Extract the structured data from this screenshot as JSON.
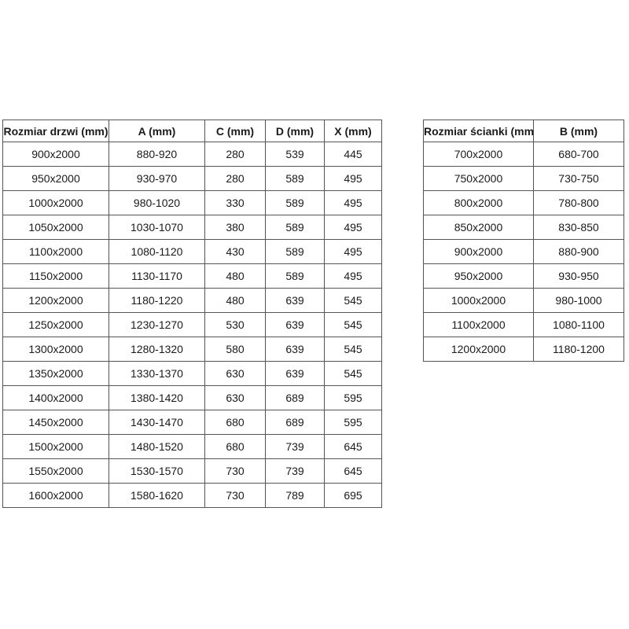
{
  "colors": {
    "background": "#ffffff",
    "border": "#555555",
    "text": "#1a1a1a"
  },
  "door_table": {
    "headers": [
      "Rozmiar drzwi (mm)",
      "A (mm)",
      "C (mm)",
      "D (mm)",
      "X (mm)"
    ],
    "rows": [
      [
        "900x2000",
        "880-920",
        "280",
        "539",
        "445"
      ],
      [
        "950x2000",
        "930-970",
        "280",
        "589",
        "495"
      ],
      [
        "1000x2000",
        "980-1020",
        "330",
        "589",
        "495"
      ],
      [
        "1050x2000",
        "1030-1070",
        "380",
        "589",
        "495"
      ],
      [
        "1100x2000",
        "1080-1120",
        "430",
        "589",
        "495"
      ],
      [
        "1150x2000",
        "1130-1170",
        "480",
        "589",
        "495"
      ],
      [
        "1200x2000",
        "1180-1220",
        "480",
        "639",
        "545"
      ],
      [
        "1250x2000",
        "1230-1270",
        "530",
        "639",
        "545"
      ],
      [
        "1300x2000",
        "1280-1320",
        "580",
        "639",
        "545"
      ],
      [
        "1350x2000",
        "1330-1370",
        "630",
        "639",
        "545"
      ],
      [
        "1400x2000",
        "1380-1420",
        "630",
        "689",
        "595"
      ],
      [
        "1450x2000",
        "1430-1470",
        "680",
        "689",
        "595"
      ],
      [
        "1500x2000",
        "1480-1520",
        "680",
        "739",
        "645"
      ],
      [
        "1550x2000",
        "1530-1570",
        "730",
        "739",
        "645"
      ],
      [
        "1600x2000",
        "1580-1620",
        "730",
        "789",
        "695"
      ]
    ]
  },
  "wall_table": {
    "headers": [
      "Rozmiar ścianki (mm)",
      "B (mm)"
    ],
    "rows": [
      [
        "700x2000",
        "680-700"
      ],
      [
        "750x2000",
        "730-750"
      ],
      [
        "800x2000",
        "780-800"
      ],
      [
        "850x2000",
        "830-850"
      ],
      [
        "900x2000",
        "880-900"
      ],
      [
        "950x2000",
        "930-950"
      ],
      [
        "1000x2000",
        "980-1000"
      ],
      [
        "1100x2000",
        "1080-1100"
      ],
      [
        "1200x2000",
        "1180-1200"
      ]
    ]
  }
}
